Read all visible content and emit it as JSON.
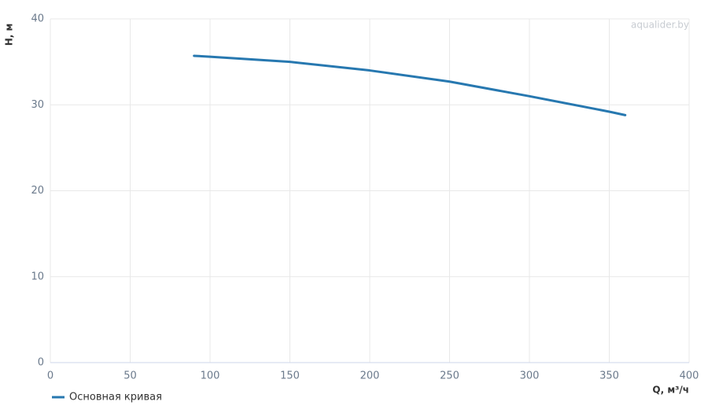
{
  "chart_data": {
    "type": "line",
    "x_label": "Q, м³/ч",
    "y_label": "H, м",
    "watermark": "aqualider.by",
    "x": [
      90,
      100,
      150,
      200,
      250,
      300,
      350,
      360
    ],
    "series": [
      {
        "name": "Основная кривая",
        "color": "#2778b0",
        "values": [
          35.7,
          35.6,
          35.0,
          34.0,
          32.7,
          31.0,
          29.2,
          28.8
        ]
      }
    ],
    "xlim": [
      0,
      400
    ],
    "xticks": [
      0,
      50,
      100,
      150,
      200,
      250,
      300,
      350,
      400
    ],
    "ylim": [
      0,
      40
    ],
    "yticks": [
      0,
      10,
      20,
      30,
      40
    ],
    "grid": true,
    "legend": "bottom-left"
  }
}
